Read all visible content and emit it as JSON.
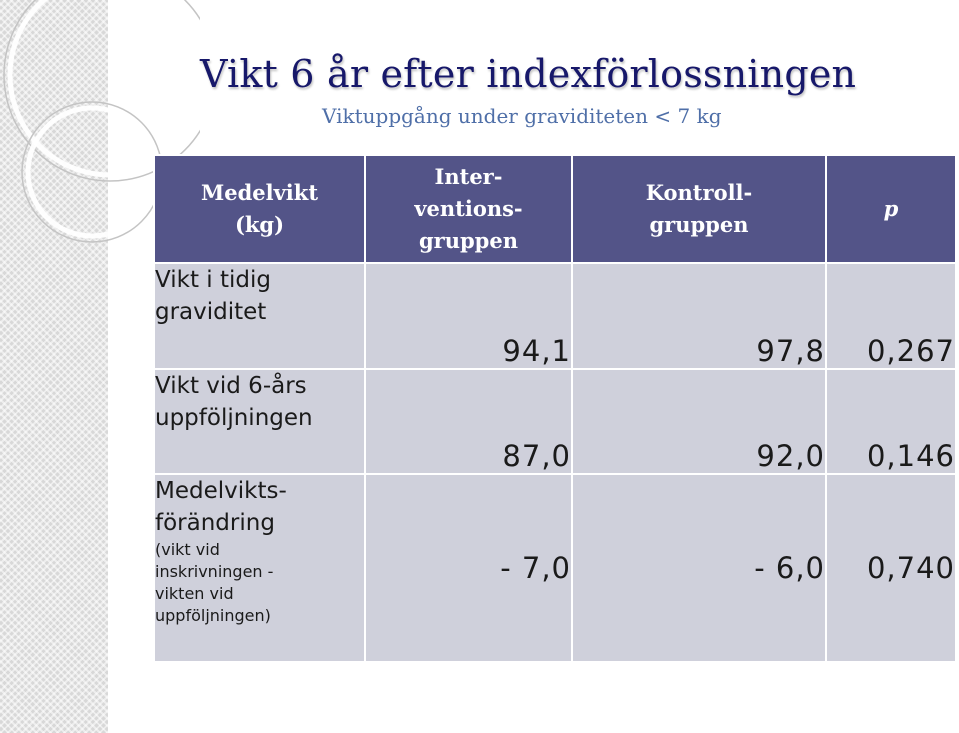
{
  "title": "Vikt 6 år efter indexförlossningen",
  "subtitle": "Viktuppgång under graviditeten < 7 kg",
  "table": {
    "headers": [
      {
        "lines": [
          "Medelvikt",
          "(kg)"
        ]
      },
      {
        "lines": [
          "Inter-",
          "ventions-",
          "gruppen"
        ]
      },
      {
        "lines": [
          "Kontroll-",
          "gruppen"
        ]
      },
      {
        "lines": [
          "p"
        ]
      }
    ],
    "rows": [
      {
        "label_lines": [
          "Vikt i tidig",
          "graviditet"
        ],
        "intervention": "94,1",
        "control": "97,8",
        "p": "0,267"
      },
      {
        "label_lines": [
          "Vikt vid 6-års",
          "uppföljningen"
        ],
        "intervention": "87,0",
        "control": "92,0",
        "p": "0,146"
      },
      {
        "label_lines": [
          "Medelvikts-",
          "förändring"
        ],
        "note_lines": [
          "(vikt vid",
          "inskrivningen -",
          "vikten vid",
          "uppföljningen)"
        ],
        "intervention": "- 7,0",
        "control": "- 6,0",
        "p": "0,740"
      }
    ]
  }
}
